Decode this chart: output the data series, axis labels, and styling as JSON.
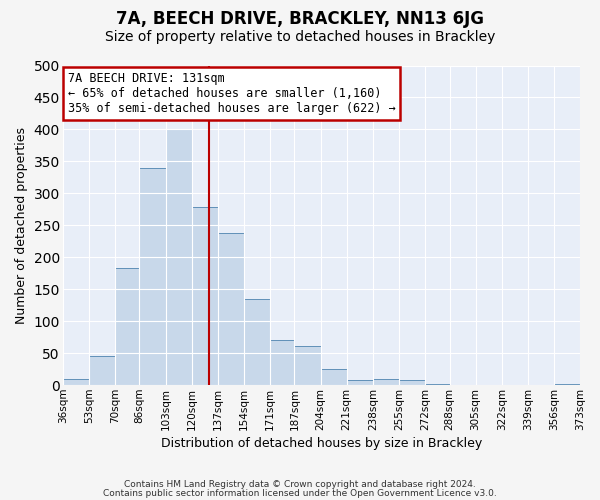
{
  "title": "7A, BEECH DRIVE, BRACKLEY, NN13 6JG",
  "subtitle": "Size of property relative to detached houses in Brackley",
  "xlabel": "Distribution of detached houses by size in Brackley",
  "ylabel": "Number of detached properties",
  "footer_lines": [
    "Contains HM Land Registry data © Crown copyright and database right 2024.",
    "Contains public sector information licensed under the Open Government Licence v3.0."
  ],
  "bin_edges": [
    36,
    53,
    70,
    86,
    103,
    120,
    137,
    154,
    171,
    187,
    204,
    221,
    238,
    255,
    272,
    288,
    305,
    322,
    339,
    356,
    373
  ],
  "bin_heights": [
    10,
    46,
    184,
    340,
    400,
    278,
    238,
    135,
    70,
    61,
    25,
    8,
    10,
    8,
    2,
    0,
    0,
    0,
    0,
    2
  ],
  "bar_color": "#c8d8ea",
  "bar_edge_color": "#6090b8",
  "vline_color": "#bb0000",
  "vline_x": 131,
  "annotation_title": "7A BEECH DRIVE: 131sqm",
  "annotation_line1": "← 65% of detached houses are smaller (1,160)",
  "annotation_line2": "35% of semi-detached houses are larger (622) →",
  "annotation_box_facecolor": "#ffffff",
  "annotation_box_edgecolor": "#bb0000",
  "ylim": [
    0,
    500
  ],
  "xlim": [
    36,
    373
  ],
  "tick_labels": [
    "36sqm",
    "53sqm",
    "70sqm",
    "86sqm",
    "103sqm",
    "120sqm",
    "137sqm",
    "154sqm",
    "171sqm",
    "187sqm",
    "204sqm",
    "221sqm",
    "238sqm",
    "255sqm",
    "272sqm",
    "288sqm",
    "305sqm",
    "322sqm",
    "339sqm",
    "356sqm",
    "373sqm"
  ],
  "tick_positions": [
    36,
    53,
    70,
    86,
    103,
    120,
    137,
    154,
    171,
    187,
    204,
    221,
    238,
    255,
    272,
    288,
    305,
    322,
    339,
    356,
    373
  ],
  "ytick_positions": [
    0,
    50,
    100,
    150,
    200,
    250,
    300,
    350,
    400,
    450,
    500
  ],
  "bg_color": "#e8eef8",
  "fig_bg_color": "#f5f5f5",
  "grid_color": "#ffffff",
  "title_fontsize": 12,
  "subtitle_fontsize": 10,
  "axis_label_fontsize": 9,
  "tick_fontsize": 7.5,
  "annotation_fontsize": 8.5
}
